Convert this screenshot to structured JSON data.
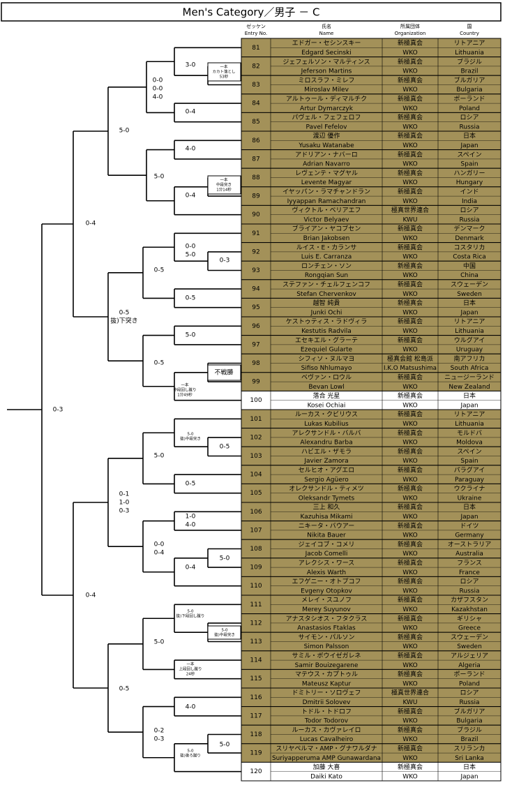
{
  "title": "Men's Category／男子 － C",
  "table": {
    "header": [
      [
        "ゼッケン",
        "Entry No."
      ],
      [
        "氏名",
        "Name"
      ],
      [
        "所属団体",
        "Organization"
      ],
      [
        "国",
        "Country"
      ]
    ],
    "rows": [
      {
        "no": 81,
        "name_ja": "エドガー・セシンスキー",
        "name_en": "Edgard Secinski",
        "org_ja": "新極真会",
        "org_en": "WKO",
        "country_ja": "リトアニア",
        "country_en": "Lithuania",
        "fill": "#a39159"
      },
      {
        "no": 82,
        "name_ja": "ジェフェルソン・マルティンス",
        "name_en": "Jeferson Martins",
        "org_ja": "新極真会",
        "org_en": "WKO",
        "country_ja": "ブラジル",
        "country_en": "Brazil",
        "fill": "#a39159"
      },
      {
        "no": 83,
        "name_ja": "ミロスラフ・ミレフ",
        "name_en": "Miroslav Milev",
        "org_ja": "新極真会",
        "org_en": "WKO",
        "country_ja": "ブルガリア",
        "country_en": "Bulgaria",
        "fill": "#a39159"
      },
      {
        "no": 84,
        "name_ja": "アルトゥール・ディマルチク",
        "name_en": "Artur Dymarczyk",
        "org_ja": "新極真会",
        "org_en": "WKO",
        "country_ja": "ポーランド",
        "country_en": "Poland",
        "fill": "#a39159"
      },
      {
        "no": 85,
        "name_ja": "パヴェル・フェフェロフ",
        "name_en": "Pavel Fefelov",
        "org_ja": "新極真会",
        "org_en": "WKO",
        "country_ja": "ロシア",
        "country_en": "Russia",
        "fill": "#a39159"
      },
      {
        "no": 86,
        "name_ja": "渡辺 優作",
        "name_en": "Yusaku Watanabe",
        "org_ja": "新極真会",
        "org_en": "WKO",
        "country_ja": "日本",
        "country_en": "Japan",
        "fill": "#a39159"
      },
      {
        "no": 87,
        "name_ja": "アドリアン・ナバーロ",
        "name_en": "Adrian Navarro",
        "org_ja": "新極真会",
        "org_en": "WKO",
        "country_ja": "スペイン",
        "country_en": "Spain",
        "fill": "#a39159"
      },
      {
        "no": 88,
        "name_ja": "レヴェンテ・マグヤル",
        "name_en": "Levente Magyar",
        "org_ja": "新極真会",
        "org_en": "WKO",
        "country_ja": "ハンガリー",
        "country_en": "Hungary",
        "fill": "#a39159"
      },
      {
        "no": 89,
        "name_ja": "イヤッパン・ラマチャンドラン",
        "name_en": "Iyyappan Ramachandran",
        "org_ja": "新極真会",
        "org_en": "WKO",
        "country_ja": "インド",
        "country_en": "India",
        "fill": "#a39159"
      },
      {
        "no": 90,
        "name_ja": "ヴィクトル・ベリアエフ",
        "name_en": "Victor Belyaev",
        "org_ja": "極真世界連合",
        "org_en": "KWU",
        "country_ja": "ロシア",
        "country_en": "Russia",
        "fill": "#a39159"
      },
      {
        "no": 91,
        "name_ja": "ブライアン・ヤコブセン",
        "name_en": "Brian Jakobsen",
        "org_ja": "新極真会",
        "org_en": "WKO",
        "country_ja": "デンマーク",
        "country_en": "Denmark",
        "fill": "#a39159"
      },
      {
        "no": 92,
        "name_ja": "ルイス・E・カランサ",
        "name_en": "Luis E. Carranza",
        "org_ja": "新極真会",
        "org_en": "WKO",
        "country_ja": "コスタリカ",
        "country_en": "Costa Rica",
        "fill": "#a39159"
      },
      {
        "no": 93,
        "name_ja": "ロンチェン・ソン",
        "name_en": "Rongqian Sun",
        "org_ja": "新極真会",
        "org_en": "WKO",
        "country_ja": "中国",
        "country_en": "China",
        "fill": "#a39159"
      },
      {
        "no": 94,
        "name_ja": "ステファン・チェルフェンコフ",
        "name_en": "Stefan Chervenkov",
        "org_ja": "新極真会",
        "org_en": "WKO",
        "country_ja": "スウェーデン",
        "country_en": "Sweden",
        "fill": "#a39159"
      },
      {
        "no": 95,
        "name_ja": "越智 純貴",
        "name_en": "Junki Ochi",
        "org_ja": "新極真会",
        "org_en": "WKO",
        "country_ja": "日本",
        "country_en": "Japan",
        "fill": "#a39159"
      },
      {
        "no": 96,
        "name_ja": "ケストゥティス・ラドヴィラ",
        "name_en": "Kestutis Radvila",
        "org_ja": "新極真会",
        "org_en": "WKO",
        "country_ja": "リトアニア",
        "country_en": "Lithuania",
        "fill": "#a39159"
      },
      {
        "no": 97,
        "name_ja": "エセキエル・グラーテ",
        "name_en": "Ezequiel Gularte",
        "org_ja": "新極真会",
        "org_en": "WKO",
        "country_ja": "ウルグアイ",
        "country_en": "Uruguay",
        "fill": "#a39159"
      },
      {
        "no": 98,
        "name_ja": "シフィソ・ヌルマヨ",
        "name_en": "Sifiso Nhlumayo",
        "org_ja": "極真会館 松島派",
        "org_en": "I.K.O Matsushima",
        "country_ja": "南アフリカ",
        "country_en": "South Africa",
        "fill": "#a39159"
      },
      {
        "no": 99,
        "name_ja": "ベヴァン・ロウル",
        "name_en": "Bevan Lowl",
        "org_ja": "新極真会",
        "org_en": "WKO",
        "country_ja": "ニュージーランド",
        "country_en": "New Zealand",
        "fill": "#a39159"
      },
      {
        "no": 100,
        "name_ja": "落合 光星",
        "name_en": "Kosei Ochiai",
        "org_ja": "新極真会",
        "org_en": "WKO",
        "country_ja": "日本",
        "country_en": "Japan",
        "fill": "#ffffff"
      },
      {
        "no": 101,
        "name_ja": "ルーカス・クビリウス",
        "name_en": "Lukas Kubilius",
        "org_ja": "新極真会",
        "org_en": "WKO",
        "country_ja": "リトアニア",
        "country_en": "Lithuania",
        "fill": "#a39159"
      },
      {
        "no": 102,
        "name_ja": "アレクサンドル・バルバ",
        "name_en": "Alexandru Barba",
        "org_ja": "新極真会",
        "org_en": "WKO",
        "country_ja": "モルドバ",
        "country_en": "Moldova",
        "fill": "#a39159"
      },
      {
        "no": 103,
        "name_ja": "ハビエル・ザモラ",
        "name_en": "Javier Zamora",
        "org_ja": "新極真会",
        "org_en": "WKO",
        "country_ja": "スペイン",
        "country_en": "Spain",
        "fill": "#a39159"
      },
      {
        "no": 104,
        "name_ja": "セルヒオ・アグエロ",
        "name_en": "Sergio Agüero",
        "org_ja": "新極真会",
        "org_en": "WKO",
        "country_ja": "パラグアイ",
        "country_en": "Paraguay",
        "fill": "#a39159"
      },
      {
        "no": 105,
        "name_ja": "オレクサンドル・ティメツ",
        "name_en": "Oleksandr Tymets",
        "org_ja": "新極真会",
        "org_en": "WKO",
        "country_ja": "ウクライナ",
        "country_en": "Ukraine",
        "fill": "#a39159"
      },
      {
        "no": 106,
        "name_ja": "三上 和久",
        "name_en": "Kazuhisa Mikami",
        "org_ja": "新極真会",
        "org_en": "WKO",
        "country_ja": "日本",
        "country_en": "Japan",
        "fill": "#a39159"
      },
      {
        "no": 107,
        "name_ja": "ニキータ・バウアー",
        "name_en": "Nikita Bauer",
        "org_ja": "新極真会",
        "org_en": "WKO",
        "country_ja": "ドイツ",
        "country_en": "Germany",
        "fill": "#a39159"
      },
      {
        "no": 108,
        "name_ja": "ジェイコブ・コメリ",
        "name_en": "Jacob Comelli",
        "org_ja": "新極真会",
        "org_en": "WKO",
        "country_ja": "オーストラリア",
        "country_en": "Australia",
        "fill": "#a39159"
      },
      {
        "no": 109,
        "name_ja": "アレクシス・ワース",
        "name_en": "Alexis Warth",
        "org_ja": "新極真会",
        "org_en": "WKO",
        "country_ja": "フランス",
        "country_en": "France",
        "fill": "#a39159"
      },
      {
        "no": 110,
        "name_ja": "エフゲニー・オトプコフ",
        "name_en": "Evgeny Otopkov",
        "org_ja": "新極真会",
        "org_en": "WKO",
        "country_ja": "ロシア",
        "country_en": "Russia",
        "fill": "#a39159"
      },
      {
        "no": 111,
        "name_ja": "メレイ・スユノフ",
        "name_en": "Merey Suyunov",
        "org_ja": "新極真会",
        "org_en": "WKO",
        "country_ja": "カザフスタン",
        "country_en": "Kazakhstan",
        "fill": "#a39159"
      },
      {
        "no": 112,
        "name_ja": "アナスタシオス・フタクラス",
        "name_en": "Anastasios Ftaklas",
        "org_ja": "新極真会",
        "org_en": "WKO",
        "country_ja": "ギリシャ",
        "country_en": "Greece",
        "fill": "#a39159"
      },
      {
        "no": 113,
        "name_ja": "サイモン・パルソン",
        "name_en": "Simon Palsson",
        "org_ja": "新極真会",
        "org_en": "WKO",
        "country_ja": "スウェーデン",
        "country_en": "Sweden",
        "fill": "#a39159"
      },
      {
        "no": 114,
        "name_ja": "サミル・ボウイゼガレネ",
        "name_en": "Samir Bouizegarene",
        "org_ja": "新極真会",
        "org_en": "WKO",
        "country_ja": "アルジェリア",
        "country_en": "Algeria",
        "fill": "#a39159"
      },
      {
        "no": 115,
        "name_ja": "マテウス・カプトゥル",
        "name_en": "Mateusz Kaptur",
        "org_ja": "新極真会",
        "org_en": "WKO",
        "country_ja": "ポーランド",
        "country_en": "Poland",
        "fill": "#a39159"
      },
      {
        "no": 116,
        "name_ja": "ドミトリー・ソロヴェフ",
        "name_en": "Dmitrii Solovev",
        "org_ja": "極真世界連合",
        "org_en": "KWU",
        "country_ja": "ロシア",
        "country_en": "Russia",
        "fill": "#a39159"
      },
      {
        "no": 117,
        "name_ja": "トドル・トドロフ",
        "name_en": "Todor Todorov",
        "org_ja": "新極真会",
        "org_en": "WKO",
        "country_ja": "ブルガリア",
        "country_en": "Bulgaria",
        "fill": "#a39159"
      },
      {
        "no": 118,
        "name_ja": "ルーカス・カヴァレイロ",
        "name_en": "Lucas Cavalheiro",
        "org_ja": "新極真会",
        "org_en": "WKO",
        "country_ja": "ブラジル",
        "country_en": "Brazil",
        "fill": "#a39159"
      },
      {
        "no": 119,
        "name_ja": "スリヤペルマ・AMP・グナワルダナ",
        "name_en": "Suriyapperuma AMP Gunawardana",
        "org_ja": "新極真会",
        "org_en": "WKO",
        "country_ja": "スリランカ",
        "country_en": "Sri Lanka",
        "fill": "#a39159"
      },
      {
        "no": 120,
        "name_ja": "加藤 大喜",
        "name_en": "Daiki Kato",
        "org_ja": "新極真会",
        "org_en": "WKO",
        "country_ja": "日本",
        "country_en": "Japan",
        "fill": "#ffffff"
      }
    ]
  },
  "bracket": {
    "labels": [
      [
        "3-0"
      ],
      [
        "一本",
        "カカト落とし",
        "53秒"
      ],
      [
        "0-0",
        "0-0",
        "4-0"
      ],
      [
        "0-4"
      ],
      [
        "5-0"
      ],
      [
        "4-0"
      ],
      [
        "5-0"
      ],
      [
        "一本",
        "中段突き",
        "1分14秒"
      ],
      [
        "0-4"
      ],
      [
        "0-4"
      ],
      [
        "0-0",
        "5-0"
      ],
      [
        "0-3"
      ],
      [
        "0-5"
      ],
      [
        "0-5"
      ],
      [
        "0-5",
        "抜)下突き"
      ],
      [
        "5-0"
      ],
      [
        "0-5"
      ],
      [
        "不戦勝"
      ],
      [
        "一本",
        "中段回し蹴り",
        "1分49秒"
      ],
      [
        "0-3"
      ],
      [
        "5-0",
        "抜)中段突き"
      ],
      [
        "0-5"
      ],
      [
        "5-0"
      ],
      [
        "0-5"
      ],
      [
        "0-1",
        "1-0",
        "0-3"
      ],
      [
        "1-0",
        "4-0"
      ],
      [
        "0-0",
        "0-4"
      ],
      [
        "5-0"
      ],
      [
        "0-4"
      ],
      [
        "0-4"
      ],
      [
        "5-0",
        "抜)下段回し蹴り"
      ],
      [
        "5-0",
        "抜)中段突き"
      ],
      [
        "5-0"
      ],
      [
        "一本",
        "上段回し蹴り",
        "24秒"
      ],
      [
        "0-5"
      ],
      [
        "4-0"
      ],
      [
        "0-2",
        "0-3"
      ],
      [
        "5-0"
      ],
      [
        "5-0",
        "抜)後ろ蹴り"
      ]
    ]
  }
}
